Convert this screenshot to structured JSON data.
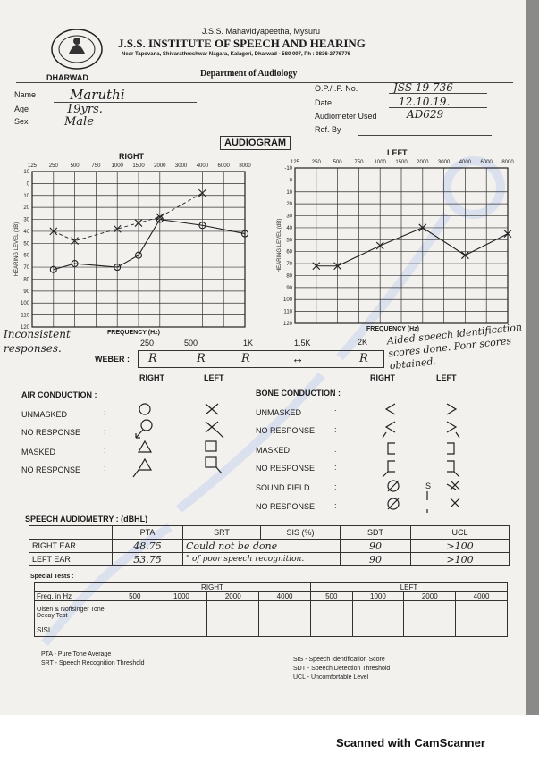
{
  "header": {
    "society": "J.S.S. Mahavidyapeetha, Mysuru",
    "institute": "J.S.S. INSTITUTE OF SPEECH AND HEARING",
    "address": "Near Tapovana, Shivarathreshwar Nagara, Kalageri, Dharwad - 580 007, Ph : 0836-2776776",
    "city": "DHARWAD",
    "department": "Department of Audiology"
  },
  "patient": {
    "name_label": "Name",
    "name": "Maruthi",
    "age_label": "Age",
    "age": "19yrs.",
    "sex_label": "Sex",
    "sex": "Male",
    "op_label": "O.P./I.P. No.",
    "op": "JSS 19 736",
    "date_label": "Date",
    "date": "12.10.19.",
    "audiometer_label": "Audiometer Used",
    "audiometer": "AD629",
    "ref_label": "Ref. By",
    "ref": ""
  },
  "audiogram": {
    "title": "AUDIOGRAM",
    "right_label": "RIGHT",
    "left_label": "LEFT",
    "freq_ticks": [
      "125",
      "250",
      "500",
      "750",
      "1000",
      "1500",
      "2000",
      "3000",
      "4000",
      "6000",
      "8000"
    ],
    "right_freq_ticks": [
      "125",
      "250",
      "500",
      "750",
      "1000",
      "1500",
      "2000",
      "3000",
      "4000",
      "6000",
      "8000"
    ],
    "level_ticks": [
      "-10",
      "0",
      "10",
      "20",
      "30",
      "40",
      "50",
      "60",
      "70",
      "80",
      "90",
      "100",
      "110",
      "120"
    ],
    "ylabel": "HEARING LEVEL (dB)",
    "xlabel": "FREQUENCY (Hz)",
    "right_ac": [
      72,
      67,
      70,
      60,
      30,
      35,
      42
    ],
    "right_bc": [
      40,
      48,
      38,
      33,
      28,
      8
    ],
    "left_ac": [
      72,
      72,
      55,
      40,
      63,
      45
    ]
  },
  "notes": {
    "inconsistent": "Inconsistent responses.",
    "aided": "Aided speech identification scores done. Poor scores obtained."
  },
  "weber": {
    "label": "WEBER :",
    "freqs": [
      "250",
      "500",
      "1K",
      "1.5K",
      "2K"
    ],
    "values": [
      "R",
      "R",
      "R",
      "↔",
      "R"
    ],
    "right": "RIGHT",
    "left": "LEFT"
  },
  "legend": {
    "air": "AIR CONDUCTION :",
    "bone": "BONE CONDUCTION :",
    "unmasked": "UNMASKED",
    "no_response": "NO RESPONSE",
    "masked": "MASKED",
    "sound_field": "SOUND FIELD",
    "s_label": "S"
  },
  "speech": {
    "title": "SPEECH AUDIOMETRY : (dBHL)",
    "headers": [
      "",
      "PTA",
      "SRT",
      "SIS (%)",
      "SDT",
      "UCL"
    ],
    "rows": [
      {
        "ear": "RIGHT EAR",
        "pta": "48.75",
        "srt_sis": "Could not be done",
        "sdt": "90",
        "ucl": ">100"
      },
      {
        "ear": "LEFT EAR",
        "pta": "53.75",
        "srt_sis": "\" of poor speech recognition.",
        "sdt": "90",
        "ucl": ">100"
      }
    ]
  },
  "special": {
    "title": "Special Tests :",
    "right": "RIGHT",
    "left": "LEFT",
    "freq_label": "Freq. in Hz",
    "freqs": [
      "500",
      "1000",
      "2000",
      "4000",
      "500",
      "1000",
      "2000",
      "4000"
    ],
    "row1": "Olsen & Noffsinger Tone Decay Test",
    "row2": "SISI"
  },
  "abbrev": {
    "pta": "PTA - Pure Tone Average",
    "srt": "SRT - Speech Recognition Threshold",
    "sis": "SIS - Speech Identification Score",
    "sdt": "SDT - Speech Detection Threshold",
    "ucl": "UCL - Uncomfortable Level"
  },
  "footer": "Scanned with CamScanner"
}
